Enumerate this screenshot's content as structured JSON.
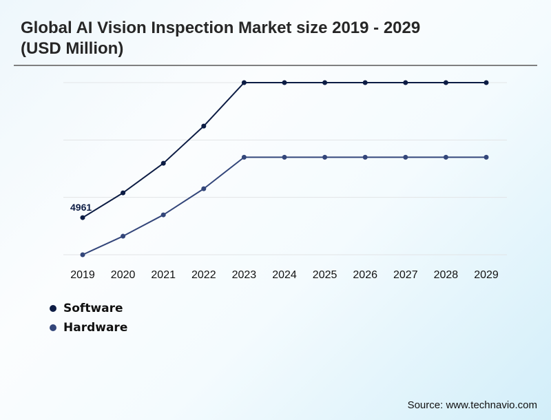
{
  "title": "Global AI Vision Inspection Market size 2019 - 2029 (USD Million)",
  "source": "Source: www.technavio.com",
  "legend": [
    {
      "label": "Software",
      "color": "#0c1c44"
    },
    {
      "label": "Hardware",
      "color": "#33467a"
    }
  ],
  "chart_data": {
    "type": "line",
    "title": "Global AI Vision Inspection Market size 2019 - 2029 (USD Million)",
    "xlabel": "",
    "ylabel": "",
    "categories": [
      "2019",
      "2020",
      "2021",
      "2022",
      "2023",
      "2024",
      "2025",
      "2026",
      "2027",
      "2028",
      "2029"
    ],
    "ylim": [
      0,
      23000
    ],
    "grid": true,
    "gridlines": [
      0,
      7667,
      15333,
      23000
    ],
    "legend_position": "bottom-left",
    "series": [
      {
        "name": "Software",
        "color": "#0c1c44",
        "values": [
          4961,
          8270,
          12220,
          17190,
          23000,
          23000,
          23000,
          23000,
          23000,
          23000,
          23000
        ],
        "data_labels": {
          "0": "4961"
        }
      },
      {
        "name": "Hardware",
        "color": "#33467a",
        "values": [
          0,
          2480,
          5330,
          8820,
          13030,
          13030,
          13030,
          13030,
          13030,
          13030,
          13030
        ]
      }
    ]
  }
}
